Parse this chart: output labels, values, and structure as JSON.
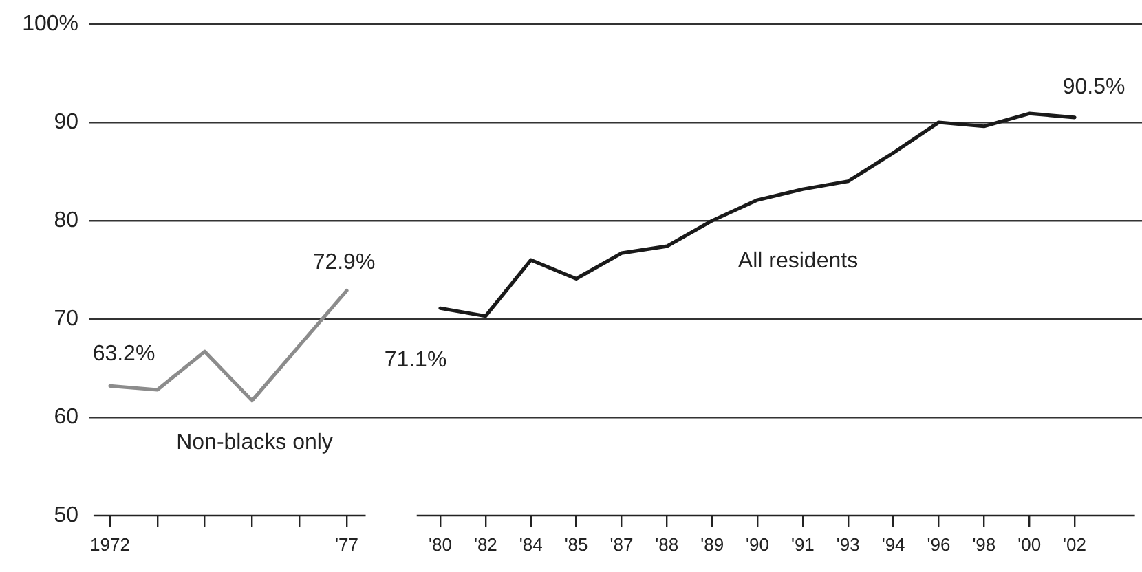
{
  "chart_data": [
    {
      "type": "line",
      "categories": [
        "1972",
        null,
        null,
        null,
        null,
        "'77"
      ],
      "marker": "none",
      "grid": "y",
      "ylim": [
        50,
        100
      ],
      "yticks": [
        50,
        60,
        70,
        80,
        90,
        {
          "value": 100,
          "label": "100%"
        }
      ],
      "series": [
        {
          "name": "Non-blacks only",
          "color": "#8c8c8c",
          "values": [
            63.2,
            62.8,
            66.7,
            61.7,
            67.3,
            72.9
          ],
          "value_labels": [
            "63.2%",
            null,
            null,
            null,
            null,
            "72.9%"
          ]
        }
      ]
    },
    {
      "type": "line",
      "categories": [
        "'80",
        "'82",
        "'84",
        "'85",
        "'87",
        "'88",
        "'89",
        "'90",
        "'91",
        "'93",
        "'94",
        "'96",
        "'98",
        "'00",
        "'02"
      ],
      "marker": "none",
      "grid": "y",
      "ylim": [
        50,
        100
      ],
      "yticks": [
        50,
        60,
        70,
        80,
        90,
        100
      ],
      "tick_labels": "x",
      "series": [
        {
          "name": "All residents",
          "color": "#1a1a1a",
          "values": [
            71.1,
            70.3,
            76.0,
            74.1,
            76.7,
            77.4,
            80.0,
            82.1,
            83.2,
            84.0,
            86.9,
            90.0,
            89.6,
            90.9,
            90.5
          ],
          "value_labels": [
            "71.1%",
            null,
            null,
            null,
            null,
            null,
            null,
            null,
            null,
            null,
            null,
            null,
            null,
            null,
            "90.5%"
          ]
        }
      ]
    }
  ]
}
